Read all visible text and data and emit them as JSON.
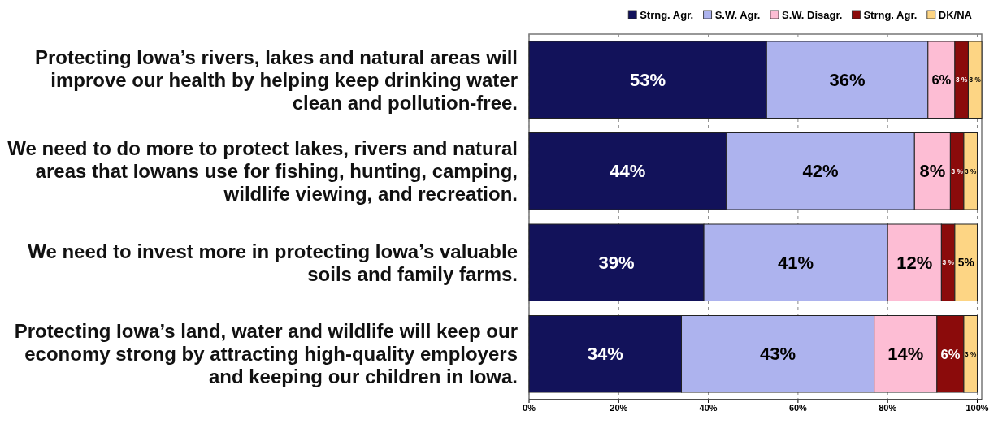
{
  "chart_data": {
    "type": "bar",
    "orientation": "horizontal",
    "stacked": true,
    "categories": [
      "Protecting Iowa’s rivers, lakes and natural areas will improve our health by helping keep drinking water clean and pollution-free.",
      "We need to do more to protect lakes, rivers and natural areas that Iowans use for fishing, hunting, camping, wildlife viewing, and recreation.",
      "We need to invest more in protecting Iowa’s valuable soils and family farms.",
      "Protecting Iowa’s land, water and wildlife will keep our economy strong by attracting high-quality employers and keeping our children in Iowa."
    ],
    "series": [
      {
        "name": "Strng. Agr.",
        "color": "#12125a",
        "values": [
          53,
          44,
          39,
          34
        ],
        "value_labels": [
          "53%",
          "44%",
          "39%",
          "34%"
        ]
      },
      {
        "name": "S.W. Agr.",
        "color": "#adb3ee",
        "values": [
          36,
          42,
          41,
          43
        ],
        "value_labels": [
          "36%",
          "42%",
          "41%",
          "43%"
        ]
      },
      {
        "name": "S.W. Disagr.",
        "color": "#fdbdd4",
        "values": [
          6,
          8,
          12,
          14
        ],
        "value_labels": [
          "6%",
          "8%",
          "12%",
          "14%"
        ]
      },
      {
        "name": "Strng. Agr.",
        "color": "#8b0b0b",
        "values": [
          3,
          3,
          3,
          6
        ],
        "value_labels": [
          "3 %",
          "3 %",
          "3 %",
          "6%"
        ]
      },
      {
        "name": "DK/NA",
        "color": "#fdd584",
        "values": [
          3,
          3,
          5,
          3
        ],
        "value_labels": [
          "3 %",
          "3 %",
          "5%",
          "3 %"
        ]
      }
    ],
    "xlim": [
      0,
      101
    ],
    "xticks": [
      {
        "value": 0,
        "label": "0%"
      },
      {
        "value": 20,
        "label": "20%"
      },
      {
        "value": 40,
        "label": "40%"
      },
      {
        "value": 60,
        "label": "60%"
      },
      {
        "value": 80,
        "label": "80%"
      },
      {
        "value": 100,
        "label": "100%"
      }
    ],
    "grid": "x",
    "legend": "top right"
  }
}
